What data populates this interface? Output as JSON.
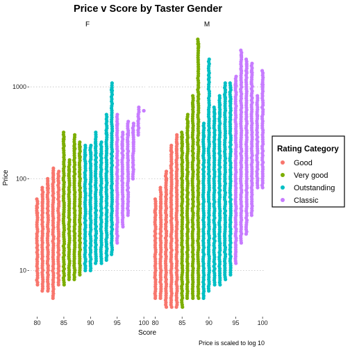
{
  "chart_data": {
    "type": "scatter",
    "title": "Price v Score by Taster Gender",
    "xlabel": "Score",
    "ylabel": "Price",
    "caption": "Price is scaled to log 10",
    "x_scale": "linear",
    "y_scale": "log10",
    "xlim": [
      78.5,
      100.5
    ],
    "ylim": [
      3.2,
      3700
    ],
    "x_ticks": [
      80,
      85,
      90,
      95,
      100
    ],
    "x_tick_labels": [
      "80",
      "85",
      "90",
      "95",
      "100"
    ],
    "y_ticks": [
      10,
      100,
      1000
    ],
    "y_tick_labels": [
      "10",
      "100",
      "1000"
    ],
    "grid": true,
    "facets": [
      "F",
      "M"
    ],
    "legend": {
      "title": "Rating Category",
      "placement": "right",
      "entries": [
        {
          "name": "Good",
          "color": "#F8766D"
        },
        {
          "name": "Very good",
          "color": "#7CAE00"
        },
        {
          "name": "Outstanding",
          "color": "#00BFC4"
        },
        {
          "name": "Classic",
          "color": "#C77CFF"
        }
      ]
    },
    "panels": [
      {
        "facet": "F",
        "columns": [
          {
            "score": 80,
            "min": 7,
            "max": 60,
            "category": "Good"
          },
          {
            "score": 81,
            "min": 6,
            "max": 80,
            "category": "Good"
          },
          {
            "score": 82,
            "min": 6,
            "max": 100,
            "category": "Good"
          },
          {
            "score": 83,
            "min": 5,
            "max": 130,
            "category": "Good"
          },
          {
            "score": 84,
            "min": 7,
            "max": 120,
            "category": "Good"
          },
          {
            "score": 85,
            "min": 7,
            "max": 320,
            "category": "Very good"
          },
          {
            "score": 86,
            "min": 8,
            "max": 160,
            "category": "Very good"
          },
          {
            "score": 87,
            "min": 8,
            "max": 300,
            "category": "Very good"
          },
          {
            "score": 88,
            "min": 9,
            "max": 250,
            "category": "Very good"
          },
          {
            "score": 89,
            "min": 10,
            "max": 230,
            "category": "Outstanding"
          },
          {
            "score": 90,
            "min": 10,
            "max": 230,
            "category": "Outstanding"
          },
          {
            "score": 91,
            "min": 12,
            "max": 320,
            "category": "Outstanding"
          },
          {
            "score": 92,
            "min": 12,
            "max": 250,
            "category": "Outstanding"
          },
          {
            "score": 93,
            "min": 13,
            "max": 500,
            "category": "Outstanding"
          },
          {
            "score": 94,
            "min": 15,
            "max": 1100,
            "category": "Outstanding"
          },
          {
            "score": 95,
            "min": 20,
            "max": 500,
            "category": "Classic"
          },
          {
            "score": 96,
            "min": 30,
            "max": 320,
            "category": "Classic"
          },
          {
            "score": 97,
            "min": 40,
            "max": 420,
            "category": "Classic"
          },
          {
            "score": 98,
            "min": 100,
            "max": 400,
            "category": "Classic"
          },
          {
            "score": 99,
            "min": 300,
            "max": 600,
            "category": "Classic"
          },
          {
            "score": 100,
            "min": 550,
            "max": 550,
            "category": "Classic"
          }
        ]
      },
      {
        "facet": "M",
        "columns": [
          {
            "score": 80,
            "min": 5,
            "max": 60,
            "category": "Good"
          },
          {
            "score": 81,
            "min": 5,
            "max": 80,
            "category": "Good"
          },
          {
            "score": 82,
            "min": 4,
            "max": 120,
            "category": "Good"
          },
          {
            "score": 83,
            "min": 4,
            "max": 230,
            "category": "Good"
          },
          {
            "score": 84,
            "min": 4,
            "max": 300,
            "category": "Good"
          },
          {
            "score": 85,
            "min": 4,
            "max": 320,
            "category": "Very good"
          },
          {
            "score": 86,
            "min": 5,
            "max": 500,
            "category": "Very good"
          },
          {
            "score": 87,
            "min": 5,
            "max": 800,
            "category": "Very good"
          },
          {
            "score": 88,
            "min": 5,
            "max": 3300,
            "category": "Very good"
          },
          {
            "score": 89,
            "min": 5,
            "max": 400,
            "category": "Outstanding"
          },
          {
            "score": 90,
            "min": 6,
            "max": 2000,
            "category": "Outstanding"
          },
          {
            "score": 91,
            "min": 7,
            "max": 600,
            "category": "Outstanding"
          },
          {
            "score": 92,
            "min": 7,
            "max": 800,
            "category": "Outstanding"
          },
          {
            "score": 93,
            "min": 8,
            "max": 1100,
            "category": "Outstanding"
          },
          {
            "score": 94,
            "min": 9,
            "max": 1100,
            "category": "Outstanding"
          },
          {
            "score": 95,
            "min": 12,
            "max": 1300,
            "category": "Classic"
          },
          {
            "score": 96,
            "min": 20,
            "max": 2500,
            "category": "Classic"
          },
          {
            "score": 97,
            "min": 25,
            "max": 2000,
            "category": "Classic"
          },
          {
            "score": 98,
            "min": 40,
            "max": 1800,
            "category": "Classic"
          },
          {
            "score": 99,
            "min": 80,
            "max": 800,
            "category": "Classic"
          },
          {
            "score": 100,
            "min": 80,
            "max": 1500,
            "category": "Classic"
          }
        ]
      }
    ]
  }
}
